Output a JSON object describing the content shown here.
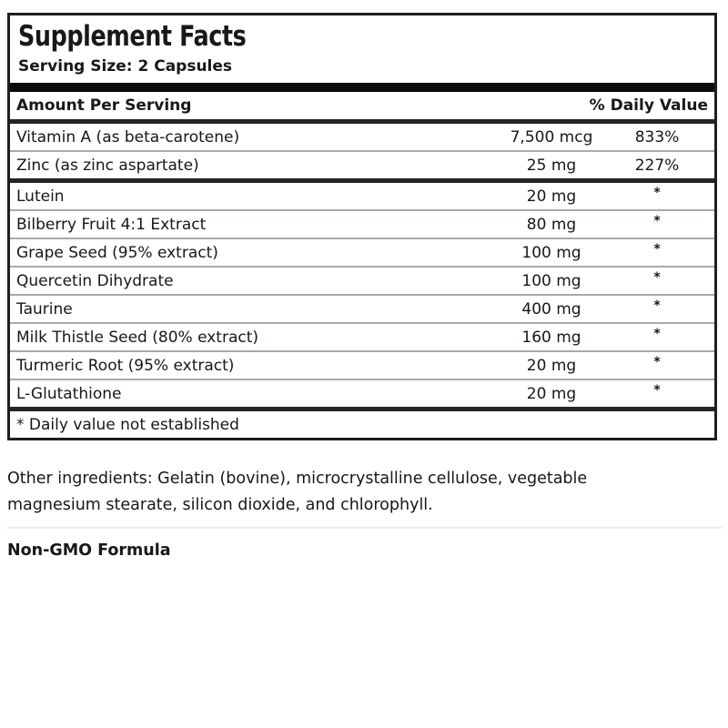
{
  "label": {
    "title": "Supplement Facts",
    "serving_size": "Serving Size: 2 Capsules",
    "columns": {
      "amount_header": "Amount Per Serving",
      "dv_header": "% Daily Value"
    },
    "groups": [
      {
        "rows": [
          {
            "name": "Vitamin A (as beta-carotene)",
            "amount": "7,500 mcg",
            "dv": "833%"
          },
          {
            "name": "Zinc (as zinc aspartate)",
            "amount": "25 mg",
            "dv": "227%"
          }
        ]
      },
      {
        "rows": [
          {
            "name": "Lutein",
            "amount": "20 mg",
            "dv": "*"
          },
          {
            "name": "Bilberry Fruit 4:1 Extract",
            "amount": "80 mg",
            "dv": "*"
          },
          {
            "name": "Grape Seed (95% extract)",
            "amount": "100 mg",
            "dv": "*"
          },
          {
            "name": "Quercetin Dihydrate",
            "amount": "100 mg",
            "dv": "*"
          },
          {
            "name": "Taurine",
            "amount": "400 mg",
            "dv": "*"
          },
          {
            "name": "Milk Thistle Seed (80% extract)",
            "amount": "160 mg",
            "dv": "*"
          },
          {
            "name": "Turmeric Root (95% extract)",
            "amount": "20 mg",
            "dv": "*"
          },
          {
            "name": "L-Glutathione",
            "amount": "20 mg",
            "dv": "*"
          }
        ]
      }
    ],
    "footnote": "* Daily value not established"
  },
  "other_ingredients": "Other ingredients: Gelatin (bovine), microcrystalline cellulose, vegetable magnesium stearate, silicon dioxide, and chlorophyll.",
  "non_gmo": "Non-GMO Formula",
  "colors": {
    "text": "#17171c",
    "heavy_rule": "#262626",
    "thick_bar": "#0c0c0c",
    "thin_rule": "#a6aaae",
    "light_divider": "#e8edf3",
    "background": "#ffffff"
  }
}
